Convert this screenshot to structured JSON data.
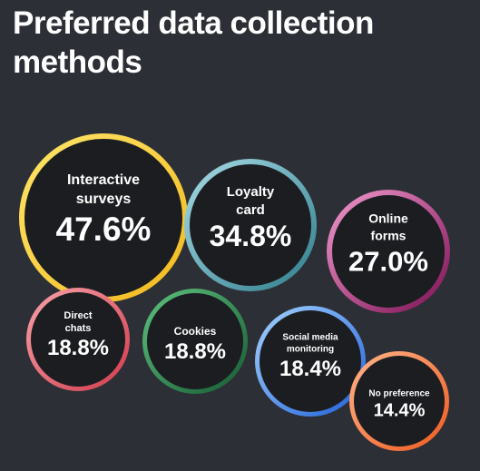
{
  "header": {
    "title": "Preferred data collection methods"
  },
  "chart_data": {
    "type": "bubble",
    "title": "Preferred data collection methods",
    "unit": "%",
    "items": [
      {
        "label": "Interactive surveys",
        "value": 47.6,
        "color_start": "#ffe66a",
        "color_end": "#f2b81c"
      },
      {
        "label": "Loyalty card",
        "value": 34.8,
        "color_start": "#a8dbe6",
        "color_end": "#2f7d8c"
      },
      {
        "label": "Online forms",
        "value": 27.0,
        "color_start": "#f39bd0",
        "color_end": "#7a0f52"
      },
      {
        "label": "Direct chats",
        "value": 18.8,
        "color_start": "#f7a3aa",
        "color_end": "#d23a4c"
      },
      {
        "label": "Cookies",
        "value": 18.8,
        "color_start": "#5fc27e",
        "color_end": "#165a33"
      },
      {
        "label": "Social media monitoring",
        "value": 18.4,
        "color_start": "#a5d3ff",
        "color_end": "#1f5fd8"
      },
      {
        "label": "No preference",
        "value": 14.4,
        "color_start": "#ffb48a",
        "color_end": "#ee5a1f"
      }
    ]
  }
}
